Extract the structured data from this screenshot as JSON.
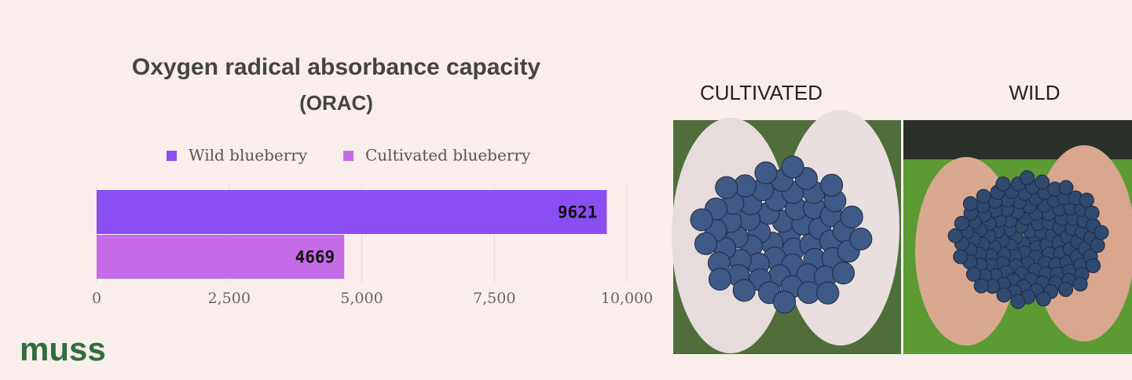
{
  "chart_data": {
    "type": "bar",
    "title": "Oxygen radical absorbance capacity",
    "subtitle": "(ORAC)",
    "categories": [
      null
    ],
    "series": [
      {
        "name": "Wild blueberry",
        "color": "#8a4ef2",
        "values": [
          9621
        ]
      },
      {
        "name": "Cultivated blueberry",
        "color": "#c56be8",
        "values": [
          4669
        ]
      }
    ],
    "xlim": [
      0,
      10000
    ],
    "xticks": [
      0,
      {
        "value": 2500,
        "label": "2,500"
      },
      {
        "value": 5000,
        "label": "5,000"
      },
      {
        "value": 7500,
        "label": "7,500"
      },
      {
        "value": 10000,
        "label": "10,000"
      }
    ],
    "grid": true
  },
  "photos": [
    {
      "label": "CULTIVATED"
    },
    {
      "label": "WILD"
    }
  ],
  "logo": "muss"
}
